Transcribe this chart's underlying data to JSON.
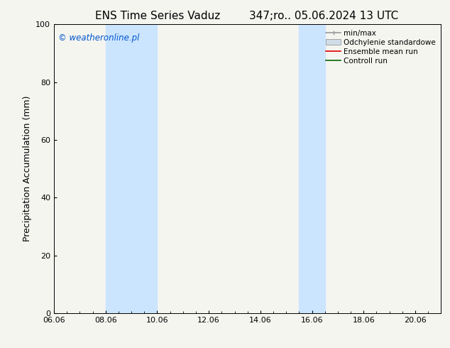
{
  "title_left": "ENS Time Series Vaduz",
  "title_right": "347;ro.. 05.06.2024 13 UTC",
  "ylabel": "Precipitation Accumulation (mm)",
  "ylim": [
    0,
    100
  ],
  "yticks": [
    0,
    20,
    40,
    60,
    80,
    100
  ],
  "xtick_labels": [
    "06.06",
    "08.06",
    "10.06",
    "12.06",
    "14.06",
    "16.06",
    "18.06",
    "20.06"
  ],
  "watermark": "© weatheronline.pl",
  "watermark_color": "#0055cc",
  "fig_bg_color": "#f5f5f0",
  "plot_bg_color": "#f5f5f0",
  "shaded_bands": [
    {
      "x_start": 8.0,
      "x_end": 10.0,
      "color": "#cce5ff"
    },
    {
      "x_start": 15.5,
      "x_end": 16.5,
      "color": "#cce5ff"
    }
  ],
  "legend_entries": [
    {
      "label": "min/max",
      "color": "#999999",
      "lw": 1.2,
      "style": "line_with_caps"
    },
    {
      "label": "Odchylenie standardowe",
      "color": "#d0dde8",
      "style": "band"
    },
    {
      "label": "Ensemble mean run",
      "color": "#dd0000",
      "lw": 1.2,
      "style": "line"
    },
    {
      "label": "Controll run",
      "color": "#006600",
      "lw": 1.2,
      "style": "line"
    }
  ],
  "x_major_ticks": [
    6,
    8,
    10,
    12,
    14,
    16,
    18,
    20
  ],
  "x_minor_ticks": [
    6.5,
    7.0,
    7.5,
    8.5,
    9.0,
    9.5,
    10.5,
    11.0,
    11.5,
    12.5,
    13.0,
    13.5,
    14.5,
    15.0,
    15.5,
    16.5,
    17.0,
    17.5,
    18.5,
    19.0,
    19.5,
    20.5
  ],
  "x_min": 6,
  "x_max": 21,
  "title_fontsize": 11,
  "label_fontsize": 9,
  "tick_fontsize": 8,
  "legend_fontsize": 7.5
}
